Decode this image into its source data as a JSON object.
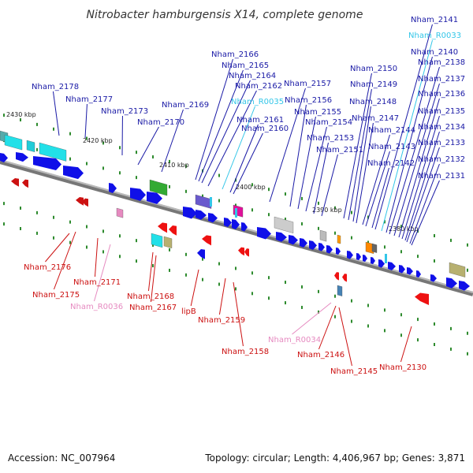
{
  "title": "Nitrobacter hamburgensis X14, complete genome",
  "footer": {
    "accession": "Accession: NC_007964",
    "summary": "Topology: circular; Length: 4,406,967 bp; Genes: 3,871"
  },
  "colors": {
    "forward_label": "#1a1aa6",
    "reverse_label": "#cc1111",
    "rna_forward": "#33c6e8",
    "rna_reverse": "#e68ac0",
    "cds": "#1010e8",
    "backbone": "#888888",
    "tick": "#2e8b2e"
  },
  "scale": {
    "start_kbp": 2430,
    "step_kbp": 10,
    "labels": [
      "2430 kbp",
      "2420 kbp",
      "2410 kbp",
      "2400 kbp",
      "2390 kbp",
      "2380 kbp"
    ]
  },
  "forward_genes": [
    {
      "name": "Nham_2178",
      "type": "cds"
    },
    {
      "name": "Nham_2177",
      "type": "cds"
    },
    {
      "name": "Nham_2173",
      "type": "cds"
    },
    {
      "name": "Nham_2170",
      "type": "cds"
    },
    {
      "name": "Nham_2169",
      "type": "cds"
    },
    {
      "name": "Nham_2166",
      "type": "cds"
    },
    {
      "name": "Nham_2165",
      "type": "cds"
    },
    {
      "name": "Nham_2164",
      "type": "cds"
    },
    {
      "name": "Nham_2162",
      "type": "cds"
    },
    {
      "name": "Nham_R0035",
      "type": "rna"
    },
    {
      "name": "Nham_2161",
      "type": "cds"
    },
    {
      "name": "Nham_2160",
      "type": "cds"
    },
    {
      "name": "Nham_2157",
      "type": "cds"
    },
    {
      "name": "Nham_2156",
      "type": "cds"
    },
    {
      "name": "Nham_2155",
      "type": "cds"
    },
    {
      "name": "Nham_2154",
      "type": "cds"
    },
    {
      "name": "Nham_2153",
      "type": "cds"
    },
    {
      "name": "Nham_2151",
      "type": "cds"
    },
    {
      "name": "Nham_2150",
      "type": "cds"
    },
    {
      "name": "Nham_2149",
      "type": "cds"
    },
    {
      "name": "Nham_2148",
      "type": "cds"
    },
    {
      "name": "Nham_2147",
      "type": "cds"
    },
    {
      "name": "Nham_2144",
      "type": "cds"
    },
    {
      "name": "Nham_2143",
      "type": "cds"
    },
    {
      "name": "Nham_2142",
      "type": "cds"
    },
    {
      "name": "Nham_2141",
      "type": "cds"
    },
    {
      "name": "Nham_R0033",
      "type": "rna"
    },
    {
      "name": "Nham_2140",
      "type": "cds"
    },
    {
      "name": "Nham_2138",
      "type": "cds"
    },
    {
      "name": "Nham_2137",
      "type": "cds"
    },
    {
      "name": "Nham_2136",
      "type": "cds"
    },
    {
      "name": "Nham_2135",
      "type": "cds"
    },
    {
      "name": "Nham_2134",
      "type": "cds"
    },
    {
      "name": "Nham_2133",
      "type": "cds"
    },
    {
      "name": "Nham_2132",
      "type": "cds"
    },
    {
      "name": "Nham_2131",
      "type": "cds"
    }
  ],
  "reverse_genes": [
    {
      "name": "Nham_2176",
      "type": "cds"
    },
    {
      "name": "Nham_2175",
      "type": "cds"
    },
    {
      "name": "Nham_2171",
      "type": "cds"
    },
    {
      "name": "Nham_R0036",
      "type": "rna"
    },
    {
      "name": "Nham_2168",
      "type": "cds"
    },
    {
      "name": "Nham_2167",
      "type": "cds"
    },
    {
      "name": "lipB",
      "type": "cds"
    },
    {
      "name": "Nham_2159",
      "type": "cds"
    },
    {
      "name": "Nham_2158",
      "type": "cds"
    },
    {
      "name": "Nham_R0034",
      "type": "rna"
    },
    {
      "name": "Nham_2146",
      "type": "cds"
    },
    {
      "name": "Nham_2145",
      "type": "cds"
    },
    {
      "name": "Nham_2130",
      "type": "cds"
    }
  ]
}
